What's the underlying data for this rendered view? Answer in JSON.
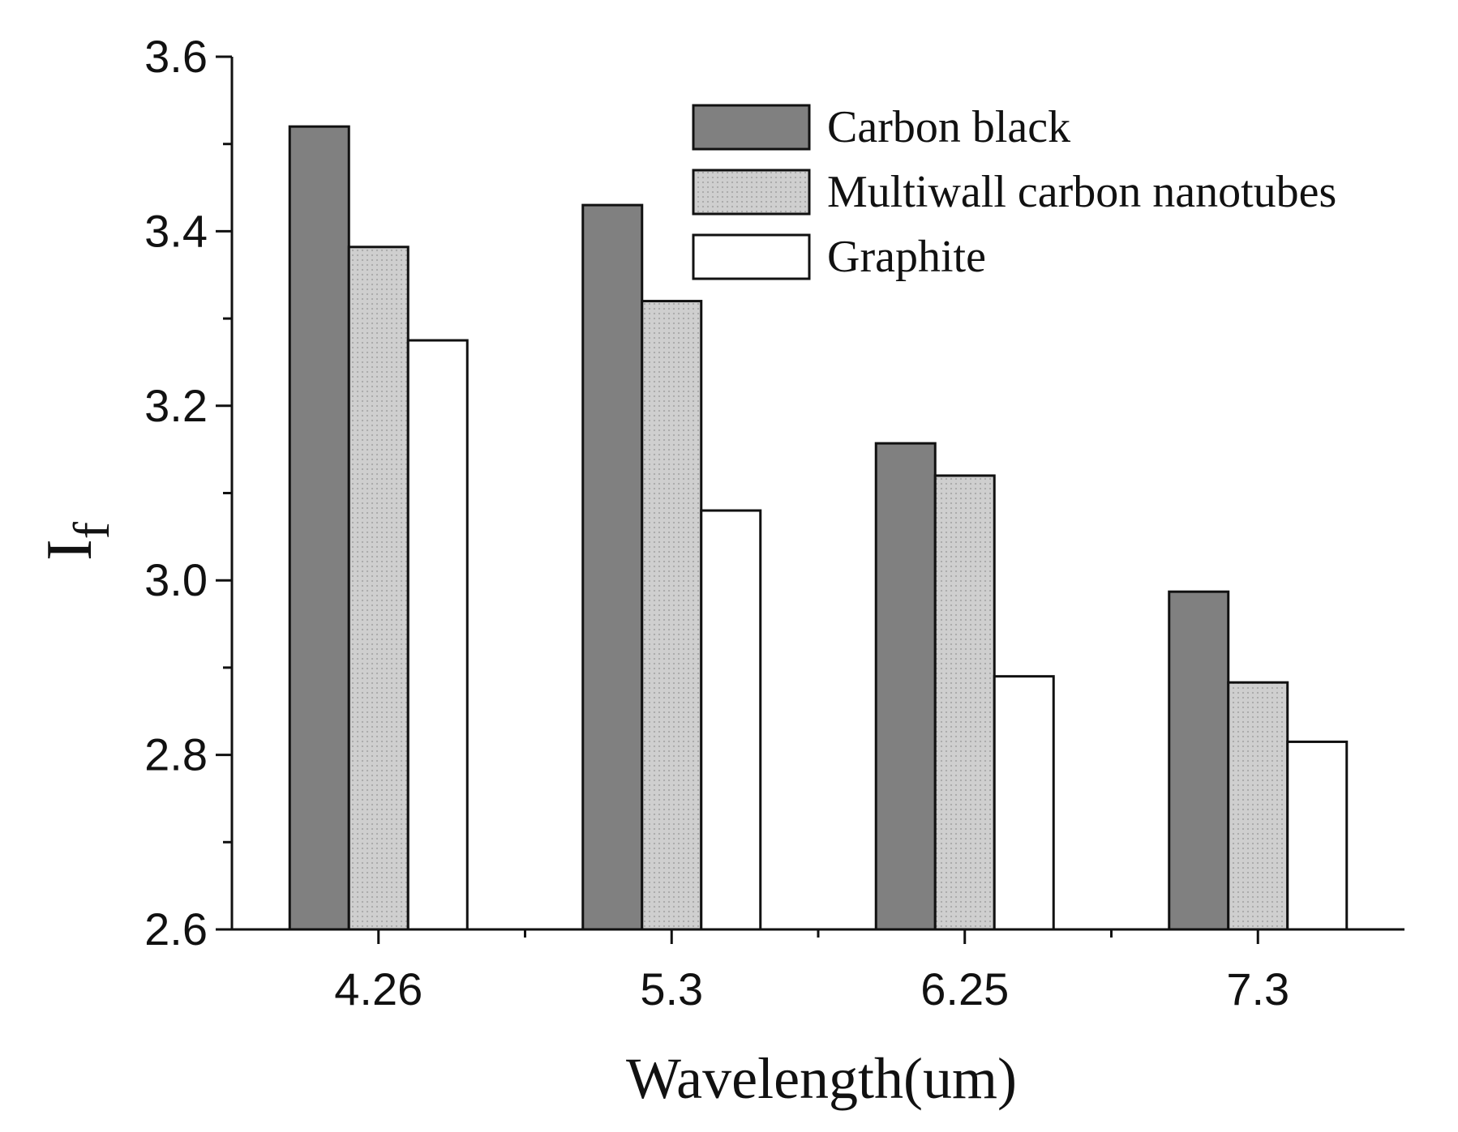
{
  "chart_data": {
    "type": "bar",
    "title": "",
    "xlabel": "Wavelength(um)",
    "ylabel": {
      "main": "I",
      "subscript": "f"
    },
    "categories": [
      "4.26",
      "5.3",
      "6.25",
      "7.3"
    ],
    "ylim": [
      2.6,
      3.6
    ],
    "yticks": [
      "2.6",
      "2.8",
      "3.0",
      "3.2",
      "3.4",
      "3.6"
    ],
    "legend_position": "top-right",
    "series": [
      {
        "name": "Carbon black",
        "color": "#808080",
        "values": [
          3.52,
          3.43,
          3.157,
          2.987
        ]
      },
      {
        "name": "Multiwall carbon nanotubes",
        "color": "#c8c8c8",
        "values": [
          3.382,
          3.32,
          3.12,
          2.883
        ]
      },
      {
        "name": "Graphite",
        "color": "#ffffff",
        "values": [
          3.275,
          3.08,
          2.89,
          2.815
        ]
      }
    ]
  }
}
